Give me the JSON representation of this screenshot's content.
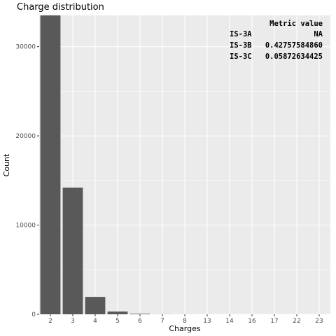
{
  "chart_data": {
    "type": "bar",
    "title": "Charge distribution",
    "xlabel": "Charges",
    "ylabel": "Count",
    "categories": [
      "2",
      "3",
      "4",
      "5",
      "6",
      "7",
      "8",
      "13",
      "14",
      "16",
      "17",
      "22",
      "23"
    ],
    "values": [
      33500,
      14200,
      1950,
      310,
      60,
      8,
      3,
      1,
      1,
      1,
      1,
      1,
      1
    ],
    "ylim": [
      0,
      33500
    ],
    "yticks": [
      0,
      10000,
      20000,
      30000
    ],
    "ytick_labels": [
      "0",
      "10000",
      "20000",
      "30000"
    ],
    "grid": true,
    "bar_color": "#595959",
    "panel_color": "#ebebeb",
    "grid_color": "#ffffff"
  },
  "metrics_table": {
    "header": "Metric value",
    "rows": [
      {
        "metric": "IS-3A",
        "value": "NA"
      },
      {
        "metric": "IS-3B",
        "value": "0.42757584860"
      },
      {
        "metric": "IS-3C",
        "value": "0.05872634425"
      }
    ]
  }
}
